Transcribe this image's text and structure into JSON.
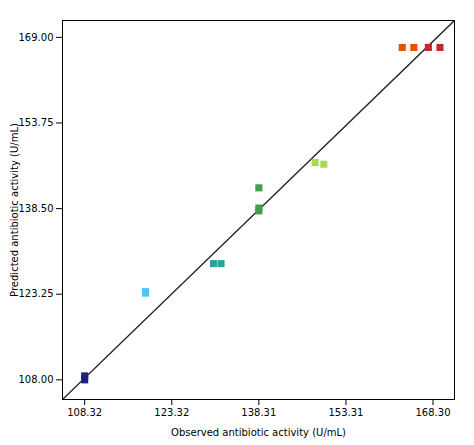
{
  "chart_data": {
    "type": "scatter",
    "xlabel": "Observed antibiotic activity (U/mL)",
    "ylabel": "Predicted antibiotic activity (U/mL)",
    "xlim": [
      104.5,
      172.0
    ],
    "ylim": [
      104.5,
      172.0
    ],
    "xticks": [
      108.32,
      123.32,
      138.31,
      153.31,
      {
        "value": 168.3,
        "label": "168.30"
      }
    ],
    "yticks": [
      {
        "value": 108,
        "label": "108.00"
      },
      123.25,
      {
        "value": 138.5,
        "label": "138.50"
      },
      153.75,
      {
        "value": 169,
        "label": "169.00"
      }
    ],
    "x": [
      108.32,
      108.32,
      118.8,
      118.8,
      130.5,
      131.8,
      138.31,
      138.31,
      138.31,
      148.0,
      149.5,
      163.0,
      165.0,
      167.5,
      169.5
    ],
    "values": [
      108.7,
      108.0,
      123.7,
      123.45,
      128.7,
      128.7,
      142.2,
      138.6,
      138.1,
      146.7,
      146.4,
      167.2,
      167.2,
      167.2,
      167.2
    ],
    "colors": [
      "#1a237e",
      "#1a237e",
      "#4fc3f7",
      "#4fc3f7",
      "#26a69a",
      "#26a69a",
      "#43a047",
      "#43a047",
      "#43a047",
      "#aed657",
      "#aed657",
      "#e65100",
      "#e65100",
      "#c62828",
      "#c62828"
    ],
    "marker": "square",
    "reference_line": {
      "x": [
        104.5,
        172.0
      ],
      "y": [
        104.5,
        172.0
      ],
      "color": "#222222"
    },
    "grid": false
  }
}
